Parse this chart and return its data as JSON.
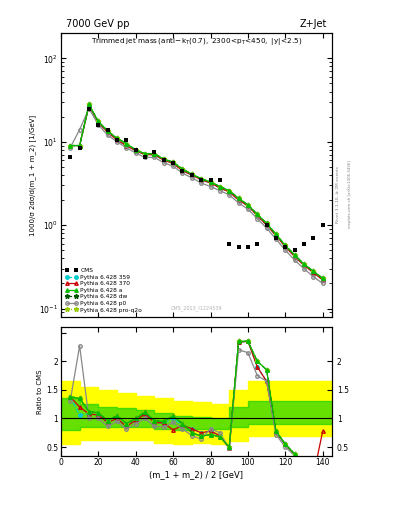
{
  "title_top": "7000 GeV pp",
  "title_right": "Z+Jet",
  "ylabel_main": "1000/σ 2dσ/d(m_1 + m_2) [1/GeV]",
  "ylabel_ratio": "Ratio to CMS",
  "xlabel": "(m_1 + m_2) / 2 [GeV]",
  "watermark": "CMS_2013_I1224539",
  "rivet_text": "Rivet 3.1.10, ≥ 2M events",
  "mcplots_text": "mcplots.cern.ch [arXiv:1306.3436]",
  "cms_x": [
    5,
    10,
    15,
    20,
    25,
    30,
    35,
    40,
    45,
    50,
    55,
    60,
    65,
    70,
    75,
    80,
    85,
    90,
    95,
    100,
    105,
    110,
    115,
    120,
    125,
    130,
    135,
    140
  ],
  "cms_y": [
    6.5,
    8.5,
    25,
    16,
    14,
    10.5,
    10.5,
    8.0,
    6.5,
    7.5,
    6.0,
    5.5,
    4.5,
    4.0,
    3.5,
    3.5,
    3.5,
    0.6,
    0.55,
    0.55,
    0.6,
    1.0,
    0.7,
    0.55,
    0.5,
    0.6,
    0.7,
    1.0
  ],
  "x_mc": [
    5,
    10,
    15,
    20,
    25,
    30,
    35,
    40,
    45,
    50,
    55,
    60,
    65,
    70,
    75,
    80,
    85,
    90,
    95,
    100,
    105,
    110,
    115,
    120,
    125,
    130,
    135,
    140
  ],
  "py359_y": [
    9,
    9,
    27,
    17,
    13,
    10.5,
    9.0,
    7.8,
    7.0,
    7.0,
    6.0,
    5.5,
    4.5,
    4.0,
    3.5,
    3.2,
    2.8,
    2.5,
    2.0,
    1.7,
    1.3,
    1.0,
    0.75,
    0.55,
    0.42,
    0.33,
    0.27,
    0.22
  ],
  "py370_y": [
    9,
    9,
    27,
    17,
    13,
    10.5,
    9.0,
    7.8,
    7.0,
    7.0,
    6.0,
    5.5,
    4.5,
    4.0,
    3.5,
    3.2,
    2.8,
    2.5,
    2.0,
    1.7,
    1.3,
    1.0,
    0.75,
    0.55,
    0.42,
    0.33,
    0.27,
    0.22
  ],
  "pya_y": [
    9,
    9,
    28,
    17.5,
    13.5,
    11,
    9.5,
    8.0,
    7.2,
    7.2,
    6.2,
    5.7,
    4.7,
    4.1,
    3.6,
    3.3,
    2.9,
    2.6,
    2.1,
    1.75,
    1.35,
    1.05,
    0.78,
    0.57,
    0.44,
    0.34,
    0.28,
    0.23
  ],
  "pydw_y": [
    9,
    9,
    28,
    17.5,
    13.5,
    11,
    9.5,
    8.0,
    7.2,
    7.2,
    6.2,
    5.7,
    4.7,
    4.1,
    3.6,
    3.3,
    2.9,
    2.6,
    2.1,
    1.75,
    1.35,
    1.05,
    0.78,
    0.57,
    0.44,
    0.34,
    0.28,
    0.23
  ],
  "pyp0_y": [
    8.5,
    14,
    25,
    16,
    12,
    10,
    8.5,
    7.3,
    6.5,
    6.5,
    5.6,
    5.1,
    4.2,
    3.7,
    3.2,
    2.9,
    2.6,
    2.3,
    1.85,
    1.55,
    1.2,
    0.92,
    0.68,
    0.5,
    0.38,
    0.3,
    0.24,
    0.2
  ],
  "pyproq2o_y": [
    9,
    9,
    28,
    17.5,
    13.5,
    11,
    9.5,
    8.0,
    7.2,
    7.2,
    6.2,
    5.7,
    4.7,
    4.1,
    3.6,
    3.3,
    2.9,
    2.6,
    2.1,
    1.75,
    1.35,
    1.05,
    0.78,
    0.57,
    0.44,
    0.34,
    0.28,
    0.23
  ],
  "ratio_x": [
    5,
    10,
    15,
    20,
    25,
    30,
    35,
    40,
    45,
    50,
    55,
    60,
    65,
    70,
    75,
    80,
    85,
    90,
    95,
    100,
    105,
    110,
    115,
    120,
    125,
    130,
    135,
    140
  ],
  "ratio_py359": [
    1.38,
    1.06,
    1.08,
    1.06,
    0.93,
    1.0,
    0.86,
    0.97,
    1.08,
    0.93,
    0.92,
    1.0,
    0.88,
    0.82,
    0.75,
    0.78,
    0.7,
    0.48,
    2.33,
    2.35,
    1.9,
    1.65,
    0.76,
    0.55,
    0.37,
    0.19,
    0.0,
    0.22
  ],
  "ratio_py370": [
    1.38,
    1.2,
    1.08,
    1.06,
    0.93,
    1.0,
    0.86,
    0.97,
    1.08,
    0.93,
    0.92,
    0.8,
    0.88,
    0.82,
    0.75,
    0.78,
    0.7,
    0.48,
    2.33,
    2.35,
    1.9,
    1.65,
    0.76,
    0.55,
    0.37,
    0.19,
    0.0,
    0.78
  ],
  "ratio_pya": [
    1.38,
    1.35,
    1.12,
    1.1,
    0.96,
    1.05,
    0.91,
    1.0,
    1.11,
    0.96,
    0.95,
    1.04,
    0.91,
    0.75,
    0.69,
    0.72,
    0.68,
    0.5,
    2.35,
    2.35,
    2.0,
    1.85,
    0.78,
    0.55,
    0.38,
    0.19,
    0.0,
    0.19
  ],
  "ratio_pydw": [
    1.38,
    1.35,
    1.12,
    1.1,
    0.96,
    1.05,
    0.91,
    1.0,
    1.11,
    0.96,
    0.95,
    1.04,
    0.91,
    0.75,
    0.69,
    0.72,
    0.68,
    0.5,
    2.35,
    2.35,
    2.0,
    1.85,
    0.78,
    0.55,
    0.38,
    0.19,
    0.0,
    0.19
  ],
  "ratio_pyp0": [
    1.31,
    2.27,
    1.0,
    1.0,
    0.86,
    0.95,
    0.81,
    0.91,
    1.0,
    0.86,
    0.85,
    0.93,
    0.82,
    0.7,
    0.64,
    0.82,
    0.75,
    0.48,
    2.2,
    2.15,
    1.75,
    1.65,
    0.72,
    0.5,
    0.35,
    0.17,
    0.0,
    0.17
  ],
  "ratio_pyproq2o": [
    1.38,
    1.35,
    1.12,
    1.1,
    0.96,
    1.05,
    0.91,
    1.0,
    1.11,
    0.96,
    0.95,
    1.04,
    0.91,
    0.75,
    0.69,
    0.72,
    0.68,
    0.5,
    2.35,
    2.35,
    2.0,
    1.85,
    0.78,
    0.55,
    0.38,
    0.19,
    0.0,
    0.19
  ],
  "band_x_edges": [
    0,
    10,
    20,
    30,
    40,
    50,
    60,
    70,
    80,
    90,
    100,
    105,
    150
  ],
  "band_green_lo": [
    0.8,
    0.85,
    0.85,
    0.85,
    0.85,
    0.82,
    0.8,
    0.82,
    0.82,
    0.85,
    0.9,
    0.9,
    0.9
  ],
  "band_green_hi": [
    1.35,
    1.25,
    1.2,
    1.18,
    1.15,
    1.1,
    1.05,
    1.02,
    1.0,
    1.2,
    1.3,
    1.3,
    1.3
  ],
  "band_yellow_lo": [
    0.55,
    0.62,
    0.62,
    0.62,
    0.62,
    0.58,
    0.55,
    0.58,
    0.55,
    0.6,
    0.7,
    0.7,
    0.7
  ],
  "band_yellow_hi": [
    1.65,
    1.55,
    1.5,
    1.45,
    1.4,
    1.35,
    1.3,
    1.28,
    1.25,
    1.5,
    1.65,
    1.65,
    1.65
  ],
  "color_cms": "black",
  "color_py359": "#00cccc",
  "color_py370": "#cc0000",
  "color_pya": "#00bb00",
  "color_pydw": "#005500",
  "color_pyp0": "#888888",
  "color_pyproq2o": "#99cc00",
  "xlim": [
    0,
    145
  ],
  "ylim_main": [
    0.08,
    200
  ],
  "ylim_ratio": [
    0.35,
    2.6
  ],
  "background_color": "#ffffff",
  "green_band_color": "#00cc00",
  "yellow_band_color": "#ffff00"
}
